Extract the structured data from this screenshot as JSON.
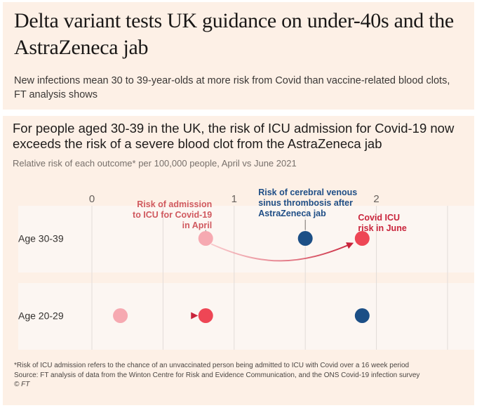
{
  "header": {
    "title": "Delta variant tests UK guidance on under-40s and the AstraZeneca jab",
    "standfirst": "New infections mean 30 to 39-year-olds at more risk from Covid than vaccine-related blood clots, FT analysis shows"
  },
  "footer": {
    "note": "*Risk of ICU admission refers to the chance of an unvaccinated person being admitted to ICU with Covid over a 16 week period",
    "source": "Source: FT analysis of data from the Winton Centre for Risk and Evidence Communication, and the ONS Covid-19 infection survey",
    "copyright": "© FT"
  },
  "colors": {
    "background": "#fdf0e6",
    "row_band": "#fcf6f2",
    "icu_april": "#f6a9b1",
    "icu_june": "#ee4655",
    "cvst": "#1c4f86",
    "arrow": "#c9243b"
  },
  "chart_data": {
    "type": "scatter",
    "title": "For people aged 30-39 in the UK, the risk of ICU admission for Covid-19 now exceeds the risk of a severe blood clot from the AstraZeneca jab",
    "subtitle": "Relative risk of each outcome* per 100,000 people, April vs June 2021",
    "xlabel": "",
    "ylabel": "",
    "xlim": [
      0,
      2.5
    ],
    "x_ticks": [
      0,
      0.5,
      1,
      1.5,
      2,
      2.5
    ],
    "x_tick_labels": [
      "0",
      "",
      "1",
      "",
      "2",
      ""
    ],
    "grid": true,
    "categories": [
      "Age 30-39",
      "Age 20-29"
    ],
    "series": [
      {
        "name": "Risk of admission to ICU for Covid-19 in April",
        "values": [
          0.8,
          0.2
        ]
      },
      {
        "name": "Risk of cerebral venous sinus thrombosis after AstraZeneca jab",
        "values": [
          1.5,
          1.9
        ]
      },
      {
        "name": "Covid ICU risk in June",
        "values": [
          1.9,
          0.8
        ]
      }
    ],
    "annotations": [
      {
        "row": 0,
        "series": 0,
        "lines": [
          "Risk of admission",
          "to ICU for Covid-19",
          "in April"
        ]
      },
      {
        "row": 0,
        "series": 1,
        "lines": [
          "Risk of cerebral venous",
          "sinus thrombosis after",
          "AstraZeneca jab"
        ]
      },
      {
        "row": 0,
        "series": 2,
        "lines": [
          "Covid ICU",
          "risk in June"
        ]
      }
    ],
    "arrows": [
      {
        "row": 0,
        "from": 0.8,
        "to": 1.9,
        "style": "curved"
      },
      {
        "row": 1,
        "from": 0.2,
        "to": 0.8,
        "style": "straight"
      }
    ]
  }
}
